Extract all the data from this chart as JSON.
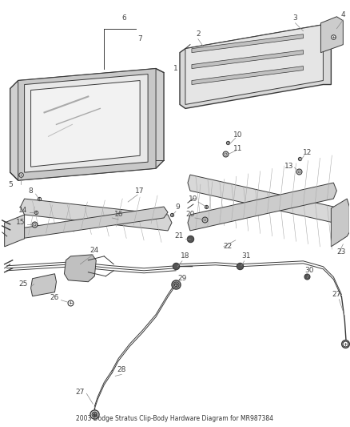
{
  "title": "2003 Dodge Stratus Clip-Body Hardware Diagram for MR987384",
  "background_color": "#ffffff",
  "line_color": "#3a3a3a",
  "label_color": "#444444",
  "leader_color": "#888888",
  "fig_width": 4.38,
  "fig_height": 5.33,
  "dpi": 100,
  "label_fs": 6.5,
  "title_fs": 5.5
}
